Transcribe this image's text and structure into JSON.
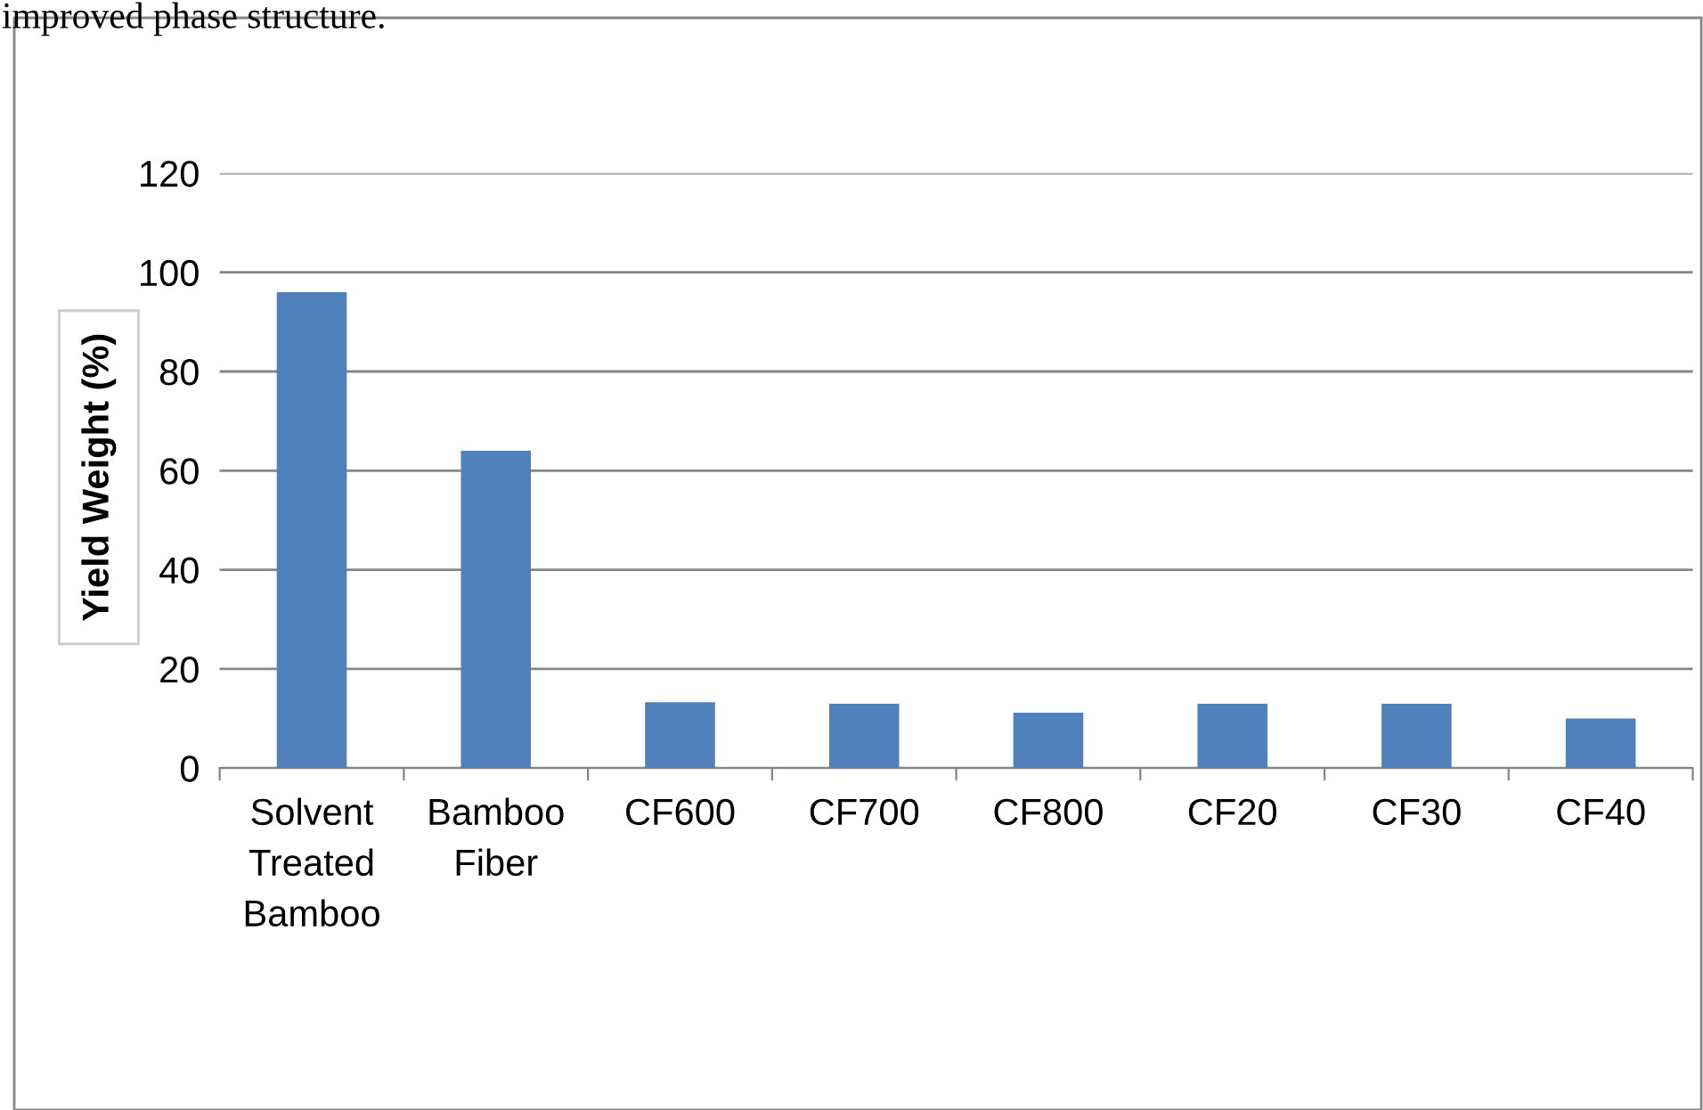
{
  "chart_data": {
    "type": "bar",
    "ylabel": "Yield Weight (%)",
    "categories": [
      "Solvent\nTreated\nBamboo",
      "Bamboo\nFiber",
      "CF600",
      "CF700",
      "CF800",
      "CF20",
      "CF30",
      "CF40"
    ],
    "values": [
      96,
      64,
      13.3,
      13,
      11.2,
      13,
      13,
      10
    ],
    "color": "#4f81bd",
    "ylim": [
      0,
      120
    ],
    "yticks": [
      0,
      20,
      40,
      60,
      80,
      100,
      120
    ],
    "grid": "y",
    "annotations": [
      "improved phase structure."
    ]
  }
}
